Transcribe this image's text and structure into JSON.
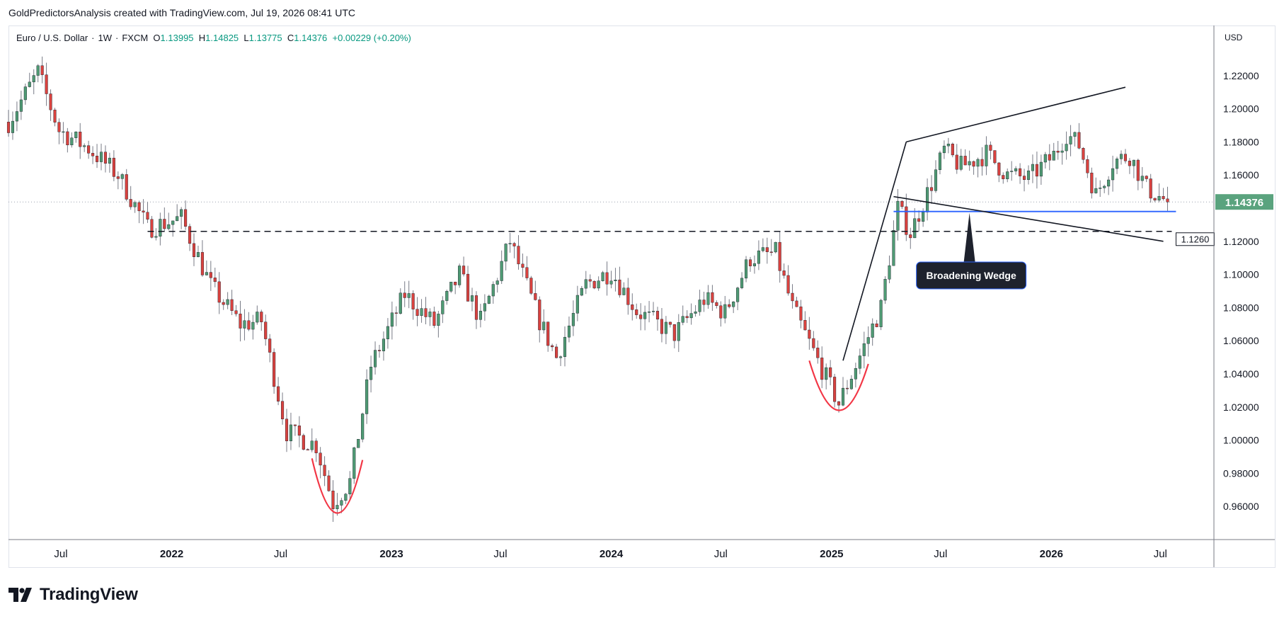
{
  "header": {
    "caption": "GoldPredictorsAnalysis created with TradingView.com, Jul 19, 2026 08:41 UTC"
  },
  "legend": {
    "symbol": "Euro / U.S. Dollar",
    "interval": "1W",
    "exchange": "FXCM",
    "open_label": "O",
    "open": "1.13995",
    "high_label": "H",
    "high": "1.14825",
    "low_label": "L",
    "low": "1.13775",
    "close_label": "C",
    "close": "1.14376",
    "change": "+0.00229 (+0.20%)"
  },
  "currency": "USD",
  "footer": {
    "brand": "TradingView"
  },
  "colors": {
    "up": "#4f9b74",
    "down": "#d9423f",
    "wick": "#787b86",
    "price_tag": "#5aa37e",
    "blue_line": "#2962ff",
    "arc": "#f23645",
    "grid_text": "#131722",
    "axis_line": "#787b86"
  },
  "chart_data": {
    "type": "candlestick",
    "series_points": [
      [
        "2021-04-05",
        1.192
      ],
      [
        "2021-05-24",
        1.222
      ],
      [
        "2021-06-28",
        1.187
      ],
      [
        "2021-08-16",
        1.176
      ],
      [
        "2021-10-04",
        1.16
      ],
      [
        "2021-11-22",
        1.128
      ],
      [
        "2022-01-17",
        1.134
      ],
      [
        "2022-03-07",
        1.093
      ],
      [
        "2022-04-25",
        1.07
      ],
      [
        "2022-05-30",
        1.072
      ],
      [
        "2022-07-11",
        1.005
      ],
      [
        "2022-08-29",
        0.997
      ],
      [
        "2022-09-26",
        0.962
      ],
      [
        "2022-10-24",
        0.975
      ],
      [
        "2022-11-28",
        1.045
      ],
      [
        "2023-01-23",
        1.088
      ],
      [
        "2023-03-13",
        1.07
      ],
      [
        "2023-04-24",
        1.1
      ],
      [
        "2023-05-29",
        1.072
      ],
      [
        "2023-07-17",
        1.12
      ],
      [
        "2023-09-04",
        1.072
      ],
      [
        "2023-10-02",
        1.05
      ],
      [
        "2023-11-20",
        1.094
      ],
      [
        "2024-01-01",
        1.102
      ],
      [
        "2024-02-12",
        1.078
      ],
      [
        "2024-04-15",
        1.064
      ],
      [
        "2024-06-03",
        1.085
      ],
      [
        "2024-07-08",
        1.077
      ],
      [
        "2024-08-19",
        1.11
      ],
      [
        "2024-09-30",
        1.113
      ],
      [
        "2024-10-28",
        1.08
      ],
      [
        "2024-12-09",
        1.048
      ],
      [
        "2025-01-13",
        1.022
      ],
      [
        "2025-02-10",
        1.045
      ],
      [
        "2025-03-24",
        1.08
      ],
      [
        "2025-04-21",
        1.14
      ],
      [
        "2025-05-12",
        1.125
      ],
      [
        "2025-06-16",
        1.155
      ],
      [
        "2025-07-07",
        1.175
      ],
      [
        "2025-08-04",
        1.165
      ],
      [
        "2025-09-15",
        1.173
      ],
      [
        "2025-10-20",
        1.16
      ],
      [
        "2025-11-24",
        1.158
      ],
      [
        "2026-01-05",
        1.172
      ],
      [
        "2026-01-26",
        1.185
      ],
      [
        "2026-02-16",
        1.178
      ],
      [
        "2026-03-16",
        1.148
      ],
      [
        "2026-04-13",
        1.168
      ],
      [
        "2026-05-11",
        1.172
      ],
      [
        "2026-06-08",
        1.152
      ],
      [
        "2026-07-13",
        1.14376
      ]
    ],
    "last_price": 1.14376,
    "last_price_label": "1.14376",
    "y_ticks": [
      "1.22000",
      "1.20000",
      "1.18000",
      "1.16000",
      "1.12000",
      "1.10000",
      "1.08000",
      "1.06000",
      "1.04000",
      "1.02000",
      "1.00000",
      "0.98000",
      "0.96000"
    ],
    "y_tick_values": [
      1.22,
      1.2,
      1.18,
      1.16,
      1.12,
      1.1,
      1.08,
      1.06,
      1.04,
      1.02,
      1.0,
      0.98,
      0.96
    ],
    "x_ticks": [
      {
        "date": "2021-07-01",
        "label": "Jul",
        "bold": false
      },
      {
        "date": "2022-01-01",
        "label": "2022",
        "bold": true
      },
      {
        "date": "2022-07-01",
        "label": "Jul",
        "bold": false
      },
      {
        "date": "2023-01-01",
        "label": "2023",
        "bold": true
      },
      {
        "date": "2023-07-01",
        "label": "Jul",
        "bold": false
      },
      {
        "date": "2024-01-01",
        "label": "2024",
        "bold": true
      },
      {
        "date": "2024-07-01",
        "label": "Jul",
        "bold": false
      },
      {
        "date": "2025-01-01",
        "label": "2025",
        "bold": true
      },
      {
        "date": "2025-07-01",
        "label": "Jul",
        "bold": false
      },
      {
        "date": "2026-01-01",
        "label": "2026",
        "bold": true
      },
      {
        "date": "2026-07-01",
        "label": "Jul",
        "bold": false
      }
    ],
    "x_range": [
      "2021-04-05",
      "2026-09-28"
    ],
    "y_range": [
      0.94,
      1.24
    ],
    "annotations": {
      "support_level": {
        "value": 1.126,
        "label": "1.1260",
        "from": "2021-11-22",
        "to": "2026-07-20",
        "style": "dashed"
      },
      "neckline": {
        "value": 1.138,
        "from": "2025-04-14",
        "to": "2026-07-27",
        "color": "blue"
      },
      "wedge_upper": [
        [
          "2025-05-05",
          1.18
        ],
        [
          "2026-05-04",
          1.213
        ]
      ],
      "wedge_lower": [
        [
          "2025-04-14",
          1.147
        ],
        [
          "2026-07-06",
          1.12
        ]
      ],
      "wedge_left": [
        [
          "2025-01-20",
          1.048
        ],
        [
          "2025-05-05",
          1.18
        ]
      ],
      "wedge_label": "Broadening Wedge",
      "arcs": [
        {
          "points": [
            [
              "2022-08-22",
              0.989
            ],
            [
              "2022-10-03",
              0.956
            ],
            [
              "2022-11-14",
              0.988
            ]
          ]
        },
        {
          "points": [
            [
              "2024-11-25",
              1.048
            ],
            [
              "2025-01-13",
              1.018
            ],
            [
              "2025-03-03",
              1.046
            ]
          ]
        }
      ]
    }
  }
}
